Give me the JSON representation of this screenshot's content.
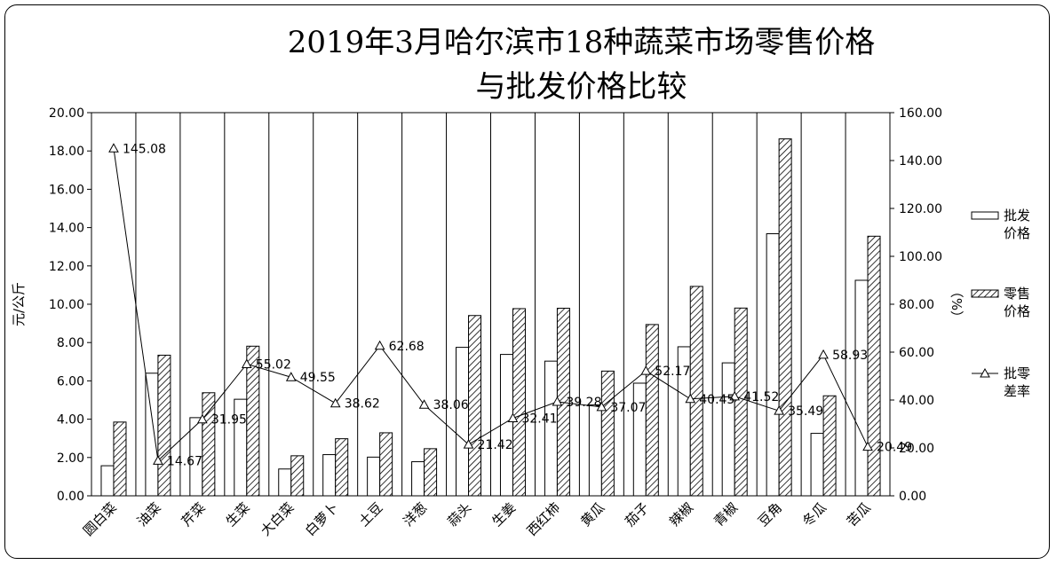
{
  "chart_data": {
    "type": "bar",
    "title": "2019年3月哈尔滨市18种蔬菜市场零售价格",
    "subtitle": "与批发价格比较",
    "ylabel": "元/公斤",
    "y2label": "（%）",
    "ylim": [
      0,
      20
    ],
    "y2lim": [
      0,
      160
    ],
    "yticks": [
      "0.00",
      "2.00",
      "4.00",
      "6.00",
      "8.00",
      "10.00",
      "12.00",
      "14.00",
      "16.00",
      "18.00",
      "20.00"
    ],
    "y2ticks": [
      "0.00",
      "20.00",
      "40.00",
      "60.00",
      "80.00",
      "100.00",
      "120.00",
      "140.00",
      "160.00"
    ],
    "categories": [
      "圆白菜",
      "油菜",
      "芹菜",
      "生菜",
      "大白菜",
      "白萝卜",
      "土豆",
      "洋葱",
      "蒜头",
      "生姜",
      "西红柿",
      "黄瓜",
      "茄子",
      "辣椒",
      "青椒",
      "豆角",
      "冬瓜",
      "苦瓜"
    ],
    "series": [
      {
        "name": "批发价格",
        "values": [
          1.57,
          6.4,
          4.08,
          5.04,
          1.4,
          2.15,
          2.02,
          1.78,
          7.75,
          7.38,
          7.03,
          4.75,
          5.88,
          7.78,
          6.94,
          13.68,
          3.26,
          11.25
        ]
      },
      {
        "name": "零售价格",
        "values": [
          3.85,
          7.34,
          5.38,
          7.81,
          2.09,
          2.98,
          3.29,
          2.46,
          9.41,
          9.77,
          9.79,
          6.51,
          8.94,
          10.93,
          9.8,
          18.63,
          5.22,
          13.55
        ]
      },
      {
        "name": "批零差率",
        "axis": "right",
        "values": [
          145.08,
          14.67,
          31.95,
          55.02,
          49.55,
          38.62,
          62.68,
          38.06,
          21.42,
          32.41,
          39.28,
          37.07,
          52.17,
          40.45,
          41.52,
          35.49,
          58.93,
          20.49
        ]
      }
    ],
    "point_labels": [
      "145.08",
      "14.67",
      "31.95",
      "55.02",
      "49.55",
      "38.62",
      "62.68",
      "38.06",
      "21.42",
      "32.41",
      "39.28",
      "37.07",
      "52.17",
      "40.45",
      "41.52",
      "35.49",
      "58.93",
      "20.49"
    ],
    "legend": {
      "position": "right",
      "items": [
        "批发\n价格",
        "零售\n价格",
        "批零\n差率"
      ]
    },
    "grid": "vertical-category"
  }
}
